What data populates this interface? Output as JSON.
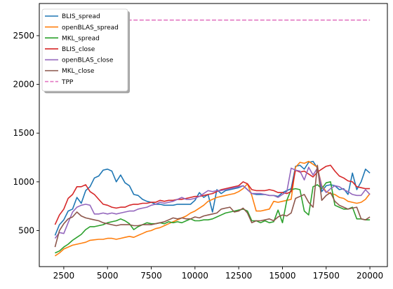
{
  "chart_data": {
    "type": "line",
    "title": "",
    "xlabel": "",
    "ylabel": "",
    "xlim": [
      1100,
      21000
    ],
    "ylim": [
      130,
      2830
    ],
    "xticks": [
      2500,
      5000,
      7500,
      10000,
      12500,
      15000,
      17500,
      20000
    ],
    "yticks": [
      500,
      1000,
      1500,
      2000,
      2500
    ],
    "grid": false,
    "legend_position": "upper-left",
    "x": [
      2000,
      2250,
      2500,
      2750,
      3000,
      3250,
      3500,
      3750,
      4000,
      4250,
      4500,
      4750,
      5000,
      5250,
      5500,
      5750,
      6000,
      6250,
      6500,
      6750,
      7000,
      7250,
      7500,
      7750,
      8000,
      8250,
      8500,
      8750,
      9000,
      9250,
      9500,
      9750,
      10000,
      10250,
      10500,
      10750,
      11000,
      11250,
      11500,
      11750,
      12000,
      12250,
      12500,
      12750,
      13000,
      13250,
      13500,
      13750,
      14000,
      14250,
      14500,
      14750,
      15000,
      15250,
      15500,
      15750,
      16000,
      16250,
      16500,
      16750,
      17000,
      17250,
      17500,
      17750,
      18000,
      18250,
      18500,
      18750,
      19000,
      19250,
      19500,
      19750,
      20000
    ],
    "series": [
      {
        "name": "BLIS_spread",
        "color": "#1f77b4",
        "dashed": false,
        "values": [
          450,
          560,
          610,
          700,
          720,
          840,
          780,
          910,
          950,
          1040,
          1060,
          1120,
          1130,
          1110,
          1000,
          1070,
          990,
          960,
          870,
          860,
          820,
          800,
          790,
          770,
          770,
          760,
          760,
          760,
          770,
          770,
          770,
          770,
          810,
          890,
          840,
          870,
          690,
          920,
          880,
          910,
          920,
          930,
          940,
          960,
          920,
          880,
          870,
          870,
          870,
          860,
          860,
          850,
          890,
          910,
          930,
          1160,
          1170,
          1130,
          1200,
          1210,
          1140,
          900,
          960,
          970,
          960,
          920,
          930,
          870,
          1090,
          920,
          1000,
          1130,
          1090
        ]
      },
      {
        "name": "openBLAS_spread",
        "color": "#ff7f0e",
        "dashed": false,
        "values": [
          240,
          270,
          310,
          330,
          350,
          360,
          370,
          380,
          400,
          405,
          410,
          410,
          420,
          420,
          410,
          420,
          430,
          440,
          430,
          450,
          470,
          490,
          500,
          520,
          530,
          550,
          570,
          590,
          610,
          630,
          650,
          680,
          700,
          730,
          760,
          800,
          820,
          840,
          850,
          860,
          870,
          880,
          900,
          930,
          980,
          860,
          700,
          700,
          710,
          720,
          800,
          790,
          800,
          810,
          820,
          1150,
          1200,
          1190,
          1210,
          1180,
          1150,
          960,
          900,
          880,
          870,
          840,
          830,
          800,
          790,
          780,
          790,
          820,
          880
        ]
      },
      {
        "name": "MKL_spread",
        "color": "#2ca02c",
        "dashed": false,
        "values": [
          270,
          290,
          330,
          360,
          400,
          430,
          460,
          510,
          540,
          540,
          550,
          560,
          580,
          590,
          600,
          620,
          600,
          570,
          510,
          540,
          560,
          580,
          570,
          570,
          580,
          570,
          590,
          580,
          590,
          580,
          600,
          620,
          600,
          600,
          610,
          610,
          620,
          640,
          660,
          680,
          690,
          700,
          710,
          720,
          700,
          600,
          600,
          580,
          600,
          580,
          590,
          710,
          580,
          810,
          920,
          930,
          920,
          700,
          660,
          950,
          970,
          930,
          990,
          1000,
          760,
          740,
          720,
          720,
          740,
          620,
          620,
          610,
          610
        ]
      },
      {
        "name": "BLIS_close",
        "color": "#d62728",
        "dashed": false,
        "values": [
          560,
          660,
          720,
          830,
          870,
          950,
          950,
          970,
          900,
          870,
          820,
          770,
          760,
          740,
          730,
          740,
          740,
          760,
          770,
          770,
          780,
          780,
          790,
          790,
          810,
          800,
          810,
          810,
          820,
          820,
          830,
          840,
          850,
          850,
          860,
          870,
          880,
          900,
          920,
          930,
          940,
          950,
          960,
          1000,
          980,
          920,
          910,
          910,
          910,
          920,
          910,
          890,
          890,
          880,
          900,
          1120,
          1100,
          1110,
          1080,
          1050,
          1100,
          1130,
          1160,
          1170,
          1110,
          1060,
          1040,
          1010,
          1000,
          950,
          940,
          930,
          930
        ]
      },
      {
        "name": "openBLAS_close",
        "color": "#9467bd",
        "dashed": false,
        "values": [
          420,
          480,
          470,
          580,
          690,
          740,
          760,
          770,
          760,
          670,
          670,
          680,
          670,
          680,
          670,
          680,
          690,
          700,
          700,
          720,
          730,
          740,
          760,
          770,
          790,
          780,
          790,
          800,
          820,
          840,
          820,
          820,
          830,
          850,
          880,
          910,
          900,
          910,
          910,
          920,
          930,
          940,
          950,
          960,
          920,
          880,
          880,
          880,
          870,
          860,
          860,
          840,
          870,
          900,
          1140,
          1120,
          1110,
          1020,
          1150,
          1070,
          1140,
          950,
          890,
          930,
          960,
          950,
          920,
          900,
          870,
          860,
          860,
          920,
          870
        ]
      },
      {
        "name": "MKL_close",
        "color": "#8c564b",
        "dashed": false,
        "values": [
          330,
          500,
          570,
          620,
          640,
          690,
          650,
          630,
          620,
          610,
          600,
          580,
          570,
          560,
          550,
          560,
          560,
          560,
          550,
          550,
          560,
          560,
          560,
          570,
          580,
          590,
          610,
          630,
          620,
          630,
          620,
          620,
          640,
          630,
          650,
          660,
          670,
          680,
          720,
          730,
          740,
          690,
          700,
          730,
          680,
          580,
          600,
          600,
          610,
          620,
          600,
          640,
          660,
          650,
          680,
          830,
          850,
          870,
          790,
          740,
          1170,
          810,
          860,
          890,
          800,
          760,
          740,
          720,
          730,
          740,
          620,
          610,
          640
        ]
      },
      {
        "name": "TPP",
        "color": "#e377c2",
        "dashed": true,
        "values": [
          2660,
          2660,
          2660,
          2660,
          2660,
          2660,
          2660,
          2660,
          2660,
          2660,
          2660,
          2660,
          2660,
          2660,
          2660,
          2660,
          2660,
          2660,
          2660,
          2660,
          2660,
          2660,
          2660,
          2660,
          2660,
          2660,
          2660,
          2660,
          2660,
          2660,
          2660,
          2660,
          2660,
          2660,
          2660,
          2660,
          2660,
          2660,
          2660,
          2660,
          2660,
          2660,
          2660,
          2660,
          2660,
          2660,
          2660,
          2660,
          2660,
          2660,
          2660,
          2660,
          2660,
          2660,
          2660,
          2660,
          2660,
          2660,
          2660,
          2660,
          2660,
          2660,
          2660,
          2660,
          2660,
          2660,
          2660,
          2660,
          2660,
          2660,
          2660,
          2660,
          2660
        ]
      }
    ]
  }
}
